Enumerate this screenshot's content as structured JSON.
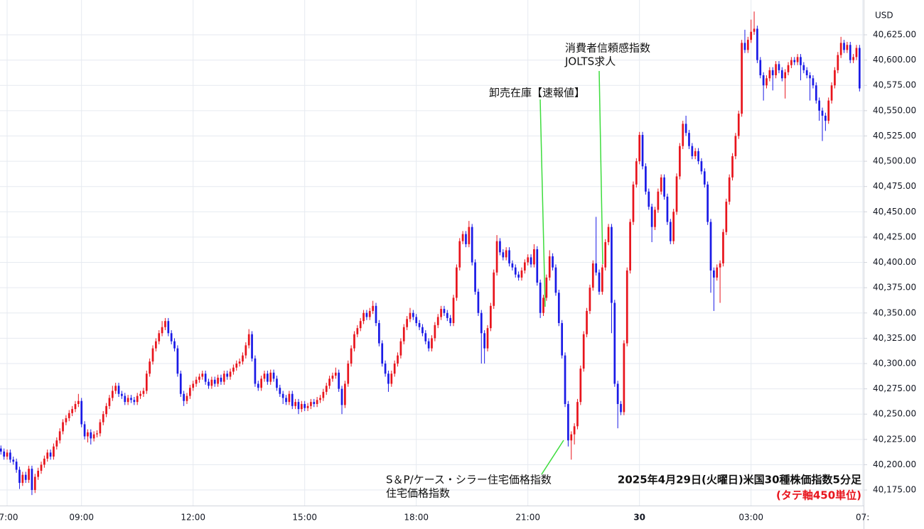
{
  "chart_data": {
    "type": "candlestick",
    "title": "2025年4月29日(火曜日)米国30種株価指数5分足",
    "subtitle": "(タテ軸450単位)",
    "y_axis_label": "USD",
    "up_color": "#e8141c",
    "down_color": "#1a1ae6",
    "grid": true,
    "xlim": [
      -0.3,
      278.3
    ],
    "xticks": [
      {
        "value": 2,
        "label": "7:00"
      },
      {
        "value": 26,
        "label": "09:00"
      },
      {
        "value": 62,
        "label": "12:00"
      },
      {
        "value": 98,
        "label": "15:00"
      },
      {
        "value": 134,
        "label": "18:00"
      },
      {
        "value": 170,
        "label": "21:00"
      },
      {
        "value": 206,
        "label": "30"
      },
      {
        "value": 242,
        "label": "03:00"
      },
      {
        "value": 278,
        "label": "07:"
      }
    ],
    "ylim": [
      40159.6,
      40659.4
    ],
    "yticks": [
      {
        "value": 40175,
        "label": "40,175.00"
      },
      {
        "value": 40200,
        "label": "40,200.00"
      },
      {
        "value": 40225,
        "label": "40,225.00"
      },
      {
        "value": 40250,
        "label": "40,250.00"
      },
      {
        "value": 40275,
        "label": "40,275.00"
      },
      {
        "value": 40300,
        "label": "40,300.00"
      },
      {
        "value": 40325,
        "label": "40,325.00"
      },
      {
        "value": 40350,
        "label": "40,350.00"
      },
      {
        "value": 40375,
        "label": "40,375.00"
      },
      {
        "value": 40400,
        "label": "40,400.00"
      },
      {
        "value": 40425,
        "label": "40,425.00"
      },
      {
        "value": 40450,
        "label": "40,450.00"
      },
      {
        "value": 40475,
        "label": "40,475.00"
      },
      {
        "value": 40500,
        "label": "40,500.00"
      },
      {
        "value": 40525,
        "label": "40,525.00"
      },
      {
        "value": 40550,
        "label": "40,550.00"
      },
      {
        "value": 40575,
        "label": "40,575.00"
      },
      {
        "value": 40600,
        "label": "40,600.00"
      },
      {
        "value": 40625,
        "label": "40,625.00"
      }
    ],
    "open": [
      40216,
      40213,
      40208,
      40212,
      40205,
      40203,
      40195,
      40182,
      40190,
      40185,
      40196,
      40175,
      40188,
      40194,
      40200,
      40206,
      40212,
      40208,
      40218,
      40224,
      40233,
      40242,
      40246,
      40251,
      40255,
      40260,
      40263,
      40240,
      40228,
      40232,
      40226,
      40230,
      40231,
      40242,
      40250,
      40258,
      40266,
      40273,
      40278,
      40270,
      40268,
      40262,
      40266,
      40264,
      40262,
      40268,
      40270,
      40273,
      40290,
      40302,
      40315,
      40322,
      40330,
      40336,
      40342,
      40330,
      40322,
      40315,
      40290,
      40270,
      40263,
      40268,
      40276,
      40280,
      40284,
      40287,
      40290,
      40282,
      40278,
      40284,
      40280,
      40286,
      40282,
      40290,
      40287,
      40292,
      40296,
      40300,
      40302,
      40308,
      40318,
      40329,
      40305,
      40280,
      40276,
      40285,
      40290,
      40282,
      40291,
      40285,
      40276,
      40270,
      40266,
      40262,
      40270,
      40258,
      40262,
      40255,
      40260,
      40256,
      40258,
      40262,
      40260,
      40264,
      40266,
      40272,
      40278,
      40285,
      40288,
      40291,
      40275,
      40259,
      40280,
      40300,
      40315,
      40329,
      40335,
      40342,
      40350,
      40346,
      40352,
      40357,
      40340,
      40320,
      40300,
      40290,
      40280,
      40290,
      40300,
      40308,
      40322,
      40336,
      40344,
      40350,
      40346,
      40340,
      40336,
      40330,
      40322,
      40315,
      40325,
      40338,
      40346,
      40354,
      40350,
      40345,
      40340,
      40365,
      40395,
      40421,
      40428,
      40418,
      40435,
      40400,
      40371,
      40350,
      40330,
      40315,
      40335,
      40357,
      40390,
      40421,
      40410,
      40405,
      40412,
      40399,
      40395,
      40388,
      40385,
      40392,
      40400,
      40405,
      40398,
      40413,
      40380,
      40350,
      40365,
      40385,
      40406,
      40395,
      40370,
      40340,
      40308,
      40260,
      40224,
      40230,
      40238,
      40262,
      40295,
      40329,
      40352,
      40375,
      40399,
      40390,
      40371,
      40395,
      40420,
      40435,
      40360,
      40280,
      40260,
      40252,
      40320,
      40392,
      40440,
      40477,
      40500,
      40526,
      40495,
      40470,
      40455,
      40435,
      40452,
      40470,
      40484,
      40465,
      40440,
      40421,
      40450,
      40485,
      40515,
      40537,
      40528,
      40515,
      40505,
      40510,
      40500,
      40490,
      40477,
      40440,
      40392,
      40385,
      40395,
      40399,
      40430,
      40460,
      40484,
      40505,
      40525,
      40547,
      40617,
      40610,
      40620,
      40628,
      40631,
      40600,
      40585,
      40575,
      40582,
      40590,
      40585,
      40596,
      40590,
      40582,
      40588,
      40595,
      40600,
      40598,
      40603,
      40595,
      40590,
      40585,
      40582,
      40575,
      40560,
      40550,
      40545,
      40540,
      40560,
      40575,
      40590,
      40605,
      40617,
      40610,
      40615,
      40600,
      40603,
      40612
    ],
    "high": [
      40219,
      40216,
      40215,
      40215,
      40208,
      40206,
      40198,
      40193,
      40193,
      40199,
      40199,
      40191,
      40197,
      40203,
      40209,
      40215,
      40215,
      40221,
      40227,
      40236,
      40245,
      40249,
      40254,
      40258,
      40263,
      40270,
      40266,
      40243,
      40235,
      40235,
      40233,
      40234,
      40245,
      40253,
      40261,
      40269,
      40278,
      40281,
      40281,
      40273,
      40271,
      40269,
      40269,
      40267,
      40271,
      40273,
      40276,
      40293,
      40305,
      40318,
      40325,
      40333,
      40342,
      40345,
      40345,
      40333,
      40325,
      40318,
      40293,
      40273,
      40271,
      40279,
      40283,
      40287,
      40290,
      40293,
      40293,
      40285,
      40287,
      40287,
      40289,
      40289,
      40293,
      40293,
      40295,
      40299,
      40303,
      40305,
      40311,
      40321,
      40334,
      40332,
      40308,
      40283,
      40288,
      40293,
      40293,
      40294,
      40294,
      40288,
      40279,
      40273,
      40269,
      40273,
      40273,
      40265,
      40265,
      40263,
      40263,
      40261,
      40265,
      40265,
      40267,
      40269,
      40275,
      40281,
      40288,
      40291,
      40296,
      40294,
      40278,
      40283,
      40303,
      40318,
      40332,
      40338,
      40345,
      40353,
      40353,
      40355,
      40362,
      40360,
      40343,
      40323,
      40303,
      40293,
      40293,
      40303,
      40311,
      40325,
      40339,
      40347,
      40355,
      40353,
      40349,
      40343,
      40339,
      40333,
      40325,
      40328,
      40341,
      40349,
      40357,
      40357,
      40353,
      40348,
      40368,
      40398,
      40424,
      40431,
      40431,
      40441,
      40438,
      40403,
      40374,
      40353,
      40333,
      40338,
      40360,
      40393,
      40427,
      40424,
      40413,
      40415,
      40415,
      40402,
      40398,
      40391,
      40395,
      40403,
      40408,
      40408,
      40418,
      40416,
      40383,
      40368,
      40388,
      40412,
      40409,
      40398,
      40373,
      40343,
      40311,
      40263,
      40233,
      40241,
      40265,
      40298,
      40332,
      40355,
      40378,
      40402,
      40445,
      40393,
      40398,
      40423,
      40438,
      40438,
      40363,
      40283,
      40263,
      40323,
      40395,
      40443,
      40480,
      40503,
      40529,
      40529,
      40498,
      40473,
      40458,
      40455,
      40473,
      40487,
      40487,
      40468,
      40443,
      40453,
      40488,
      40518,
      40540,
      40545,
      40531,
      40518,
      40513,
      40513,
      40503,
      40493,
      40480,
      40443,
      40395,
      40398,
      40402,
      40433,
      40463,
      40487,
      40508,
      40528,
      40550,
      40620,
      40630,
      40623,
      40640,
      40648,
      40634,
      40603,
      40588,
      40585,
      40593,
      40593,
      40599,
      40599,
      40593,
      40591,
      40598,
      40603,
      40603,
      40606,
      40606,
      40598,
      40593,
      40588,
      40585,
      40578,
      40563,
      40553,
      40548,
      40563,
      40578,
      40593,
      40608,
      40623,
      40620,
      40618,
      40618,
      40606,
      40615,
      40615
    ],
    "low": [
      40210,
      40205,
      40205,
      40202,
      40200,
      40192,
      40176,
      40179,
      40182,
      40182,
      40170,
      40172,
      40185,
      40191,
      40197,
      40203,
      40205,
      40205,
      40215,
      40221,
      40230,
      40239,
      40243,
      40248,
      40252,
      40257,
      40237,
      40225,
      40222,
      40220,
      40223,
      40227,
      40228,
      40239,
      40247,
      40255,
      40263,
      40270,
      40267,
      40265,
      40259,
      40259,
      40261,
      40259,
      40259,
      40265,
      40267,
      40270,
      40287,
      40299,
      40312,
      40319,
      40327,
      40333,
      40327,
      40319,
      40312,
      40287,
      40267,
      40258,
      40260,
      40265,
      40273,
      40277,
      40281,
      40284,
      40279,
      40275,
      40275,
      40277,
      40277,
      40279,
      40279,
      40284,
      40284,
      40289,
      40293,
      40297,
      40299,
      40305,
      40315,
      40302,
      40277,
      40273,
      40273,
      40282,
      40279,
      40279,
      40282,
      40273,
      40267,
      40260,
      40259,
      40259,
      40255,
      40255,
      40250,
      40252,
      40253,
      40253,
      40255,
      40257,
      40257,
      40261,
      40263,
      40269,
      40275,
      40282,
      40285,
      40272,
      40250,
      40256,
      40277,
      40297,
      40312,
      40326,
      40332,
      40339,
      40343,
      40343,
      40349,
      40337,
      40317,
      40297,
      40287,
      40272,
      40277,
      40287,
      40297,
      40305,
      40319,
      40333,
      40341,
      40343,
      40337,
      40333,
      40327,
      40319,
      40312,
      40312,
      40322,
      40335,
      40343,
      40347,
      40342,
      40337,
      40337,
      40362,
      40392,
      40418,
      40415,
      40415,
      40397,
      40368,
      40347,
      40300,
      40300,
      40312,
      40332,
      40354,
      40387,
      40407,
      40402,
      40402,
      40396,
      40392,
      40385,
      40382,
      40382,
      40389,
      40397,
      40395,
      40395,
      40377,
      40345,
      40347,
      40362,
      40382,
      40392,
      40367,
      40337,
      40305,
      40257,
      40218,
      40205,
      40220,
      40235,
      40259,
      40292,
      40326,
      40349,
      40372,
      40387,
      40368,
      40368,
      40392,
      40417,
      40330,
      40277,
      40236,
      40249,
      40249,
      40317,
      40389,
      40437,
      40474,
      40497,
      40492,
      40467,
      40452,
      40420,
      40432,
      40449,
      40467,
      40462,
      40437,
      40418,
      40418,
      40447,
      40482,
      40512,
      40525,
      40512,
      40502,
      40502,
      40497,
      40487,
      40474,
      40437,
      40370,
      40352,
      40382,
      40360,
      40396,
      40427,
      40457,
      40481,
      40502,
      40522,
      40544,
      40607,
      40607,
      40617,
      40625,
      40597,
      40582,
      40560,
      40572,
      40579,
      40570,
      40582,
      40587,
      40579,
      40562,
      40585,
      40592,
      40595,
      40595,
      40580,
      40587,
      40582,
      40560,
      40572,
      40557,
      40540,
      40520,
      40530,
      40537,
      40557,
      40572,
      40587,
      40602,
      40607,
      40607,
      40597,
      40597,
      40600,
      40569
    ],
    "close": [
      40213,
      40208,
      40212,
      40205,
      40203,
      40195,
      40182,
      40190,
      40185,
      40196,
      40175,
      40188,
      40194,
      40200,
      40206,
      40212,
      40208,
      40218,
      40224,
      40233,
      40242,
      40246,
      40251,
      40255,
      40260,
      40263,
      40240,
      40228,
      40232,
      40226,
      40230,
      40231,
      40242,
      40250,
      40258,
      40266,
      40273,
      40278,
      40270,
      40268,
      40262,
      40266,
      40264,
      40262,
      40268,
      40270,
      40273,
      40290,
      40302,
      40315,
      40322,
      40330,
      40336,
      40342,
      40330,
      40322,
      40315,
      40290,
      40270,
      40263,
      40268,
      40276,
      40280,
      40284,
      40287,
      40290,
      40282,
      40278,
      40284,
      40280,
      40286,
      40282,
      40290,
      40287,
      40292,
      40296,
      40300,
      40302,
      40308,
      40318,
      40329,
      40305,
      40280,
      40276,
      40285,
      40290,
      40282,
      40291,
      40285,
      40276,
      40270,
      40266,
      40262,
      40270,
      40258,
      40262,
      40255,
      40260,
      40256,
      40258,
      40262,
      40260,
      40264,
      40266,
      40272,
      40278,
      40285,
      40288,
      40291,
      40275,
      40259,
      40280,
      40300,
      40315,
      40329,
      40335,
      40342,
      40350,
      40346,
      40352,
      40357,
      40340,
      40320,
      40300,
      40290,
      40280,
      40290,
      40300,
      40308,
      40322,
      40336,
      40344,
      40350,
      40346,
      40340,
      40336,
      40330,
      40322,
      40315,
      40325,
      40338,
      40346,
      40354,
      40350,
      40345,
      40340,
      40365,
      40395,
      40421,
      40428,
      40418,
      40435,
      40400,
      40371,
      40350,
      40330,
      40315,
      40335,
      40357,
      40390,
      40421,
      40410,
      40405,
      40412,
      40399,
      40395,
      40388,
      40385,
      40392,
      40400,
      40405,
      40398,
      40413,
      40380,
      40350,
      40365,
      40385,
      40406,
      40395,
      40370,
      40340,
      40308,
      40260,
      40224,
      40230,
      40238,
      40262,
      40295,
      40329,
      40352,
      40375,
      40399,
      40390,
      40371,
      40395,
      40420,
      40435,
      40360,
      40280,
      40260,
      40252,
      40320,
      40392,
      40440,
      40477,
      40500,
      40526,
      40495,
      40470,
      40455,
      40435,
      40452,
      40470,
      40484,
      40465,
      40440,
      40421,
      40450,
      40485,
      40515,
      40537,
      40528,
      40515,
      40505,
      40510,
      40500,
      40490,
      40477,
      40440,
      40392,
      40385,
      40395,
      40399,
      40430,
      40460,
      40484,
      40505,
      40525,
      40547,
      40617,
      40610,
      40620,
      40628,
      40631,
      40600,
      40585,
      40575,
      40582,
      40590,
      40585,
      40596,
      40590,
      40582,
      40588,
      40595,
      40600,
      40598,
      40603,
      40595,
      40590,
      40585,
      40582,
      40575,
      40560,
      40550,
      40545,
      40540,
      40560,
      40575,
      40590,
      40605,
      40617,
      40610,
      40615,
      40600,
      40603,
      40612,
      40572
    ],
    "annotations": [
      {
        "lines": [
          "消費者信頼感指数",
          "JOLTS求人"
        ]
      },
      {
        "lines": [
          "卸売在庫【速報値】"
        ]
      },
      {
        "lines": [
          "S＆P/ケース・シラー住宅価格指数",
          "住宅価格指数"
        ]
      }
    ]
  }
}
